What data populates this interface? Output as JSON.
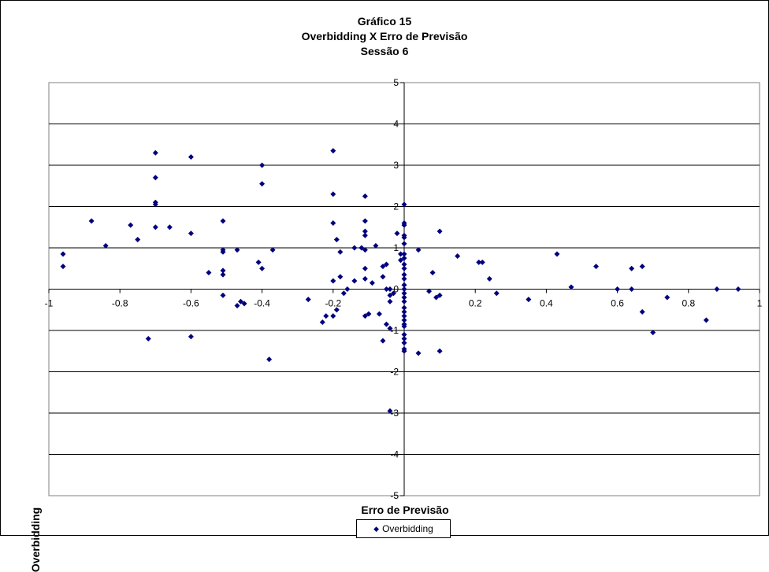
{
  "chart_data": {
    "type": "scatter",
    "title": [
      "Gráfico 15",
      "Overbidding X Erro de Previsão",
      "Sessão 6"
    ],
    "xlabel": "Erro de Previsão",
    "ylabel": "Overbidding",
    "xlim": [
      -1,
      1
    ],
    "ylim": [
      -5,
      5
    ],
    "x_ticks": [
      -1,
      -0.8,
      -0.6,
      -0.4,
      -0.2,
      0,
      0.2,
      0.4,
      0.6,
      0.8,
      1
    ],
    "x_tick_labels": [
      "-1",
      "-0.8",
      "-0.6",
      "-0.4",
      "-0.2",
      "0",
      "0.2",
      "0.4",
      "0.6",
      "0.8",
      "1"
    ],
    "y_ticks": [
      -5,
      -4,
      -3,
      -2,
      -1,
      0,
      1,
      2,
      3,
      4,
      5
    ],
    "y_tick_labels": [
      "-5",
      "-4",
      "-3",
      "-2",
      "-1",
      "0",
      "1",
      "2",
      "3",
      "4",
      "5"
    ],
    "grid": "horizontal",
    "marker_color": "#00007e",
    "legend": {
      "entries": [
        "Overbidding"
      ],
      "placement": "bottom"
    },
    "series": [
      {
        "name": "Overbidding",
        "points": [
          [
            -0.96,
            0.85
          ],
          [
            -0.96,
            0.55
          ],
          [
            -0.88,
            1.65
          ],
          [
            -0.84,
            1.05
          ],
          [
            -0.77,
            1.55
          ],
          [
            -0.75,
            1.2
          ],
          [
            -0.72,
            -1.2
          ],
          [
            -0.7,
            3.3
          ],
          [
            -0.7,
            2.7
          ],
          [
            -0.7,
            2.1
          ],
          [
            -0.7,
            2.05
          ],
          [
            -0.7,
            1.5
          ],
          [
            -0.66,
            1.5
          ],
          [
            -0.6,
            3.2
          ],
          [
            -0.6,
            1.35
          ],
          [
            -0.6,
            -1.15
          ],
          [
            -0.55,
            0.4
          ],
          [
            -0.51,
            1.65
          ],
          [
            -0.51,
            0.95
          ],
          [
            -0.51,
            0.9
          ],
          [
            -0.51,
            0.45
          ],
          [
            -0.51,
            0.35
          ],
          [
            -0.51,
            -0.15
          ],
          [
            -0.47,
            0.95
          ],
          [
            -0.47,
            -0.4
          ],
          [
            -0.46,
            -0.3
          ],
          [
            -0.45,
            -0.35
          ],
          [
            -0.4,
            3.0
          ],
          [
            -0.4,
            2.55
          ],
          [
            -0.4,
            0.5
          ],
          [
            -0.41,
            0.65
          ],
          [
            -0.38,
            -1.7
          ],
          [
            -0.37,
            0.95
          ],
          [
            -0.27,
            -0.25
          ],
          [
            -0.23,
            -0.8
          ],
          [
            -0.22,
            -0.65
          ],
          [
            -0.2,
            3.35
          ],
          [
            -0.2,
            2.3
          ],
          [
            -0.2,
            1.6
          ],
          [
            -0.19,
            1.2
          ],
          [
            -0.2,
            0.2
          ],
          [
            -0.2,
            -0.65
          ],
          [
            -0.19,
            -0.5
          ],
          [
            -0.18,
            0.9
          ],
          [
            -0.18,
            0.3
          ],
          [
            -0.17,
            -0.1
          ],
          [
            -0.16,
            0.0
          ],
          [
            -0.14,
            1.0
          ],
          [
            -0.14,
            0.2
          ],
          [
            -0.12,
            1.0
          ],
          [
            -0.11,
            2.25
          ],
          [
            -0.11,
            1.65
          ],
          [
            -0.11,
            1.4
          ],
          [
            -0.11,
            1.3
          ],
          [
            -0.11,
            0.95
          ],
          [
            -0.11,
            0.5
          ],
          [
            -0.11,
            0.25
          ],
          [
            -0.11,
            -0.65
          ],
          [
            -0.1,
            -0.6
          ],
          [
            -0.09,
            0.15
          ],
          [
            -0.08,
            1.05
          ],
          [
            -0.07,
            -0.6
          ],
          [
            -0.06,
            -1.25
          ],
          [
            -0.06,
            0.3
          ],
          [
            -0.06,
            0.55
          ],
          [
            -0.05,
            0.6
          ],
          [
            -0.05,
            0.0
          ],
          [
            -0.04,
            0.0
          ],
          [
            -0.04,
            -0.15
          ],
          [
            -0.04,
            -0.3
          ],
          [
            -0.05,
            -0.85
          ],
          [
            -0.04,
            -0.95
          ],
          [
            -0.04,
            -2.95
          ],
          [
            -0.03,
            -0.1
          ],
          [
            -0.02,
            1.35
          ],
          [
            -0.01,
            0.85
          ],
          [
            -0.01,
            0.7
          ],
          [
            0.0,
            2.05
          ],
          [
            0.0,
            1.6
          ],
          [
            0.0,
            1.55
          ],
          [
            0.0,
            1.3
          ],
          [
            0.0,
            1.25
          ],
          [
            0.0,
            1.1
          ],
          [
            0.0,
            0.85
          ],
          [
            0.0,
            0.75
          ],
          [
            0.0,
            0.6
          ],
          [
            0.0,
            0.5
          ],
          [
            0.0,
            0.35
          ],
          [
            0.0,
            0.25
          ],
          [
            0.0,
            0.1
          ],
          [
            0.0,
            0.0
          ],
          [
            0.0,
            -0.1
          ],
          [
            0.0,
            -0.2
          ],
          [
            0.0,
            -0.3
          ],
          [
            0.0,
            -0.45
          ],
          [
            0.0,
            -0.55
          ],
          [
            0.0,
            -0.65
          ],
          [
            0.0,
            -0.75
          ],
          [
            0.0,
            -0.85
          ],
          [
            0.0,
            -0.9
          ],
          [
            0.0,
            -1.1
          ],
          [
            0.0,
            -1.2
          ],
          [
            0.0,
            -1.3
          ],
          [
            0.0,
            -1.45
          ],
          [
            0.0,
            -1.5
          ],
          [
            0.04,
            0.95
          ],
          [
            0.04,
            -1.55
          ],
          [
            0.07,
            -0.05
          ],
          [
            0.08,
            0.4
          ],
          [
            0.09,
            -0.2
          ],
          [
            0.1,
            -0.15
          ],
          [
            0.1,
            -1.5
          ],
          [
            0.1,
            1.4
          ],
          [
            0.15,
            0.8
          ],
          [
            0.21,
            0.65
          ],
          [
            0.22,
            0.65
          ],
          [
            0.24,
            0.25
          ],
          [
            0.26,
            -0.1
          ],
          [
            0.35,
            -0.25
          ],
          [
            0.43,
            0.85
          ],
          [
            0.47,
            0.05
          ],
          [
            0.54,
            0.55
          ],
          [
            0.6,
            0.0
          ],
          [
            0.64,
            0.5
          ],
          [
            0.64,
            0.0
          ],
          [
            0.67,
            0.55
          ],
          [
            0.67,
            -0.55
          ],
          [
            0.7,
            -1.05
          ],
          [
            0.74,
            -0.2
          ],
          [
            0.85,
            -0.75
          ],
          [
            0.88,
            0.0
          ],
          [
            0.94,
            0.0
          ]
        ]
      }
    ]
  }
}
